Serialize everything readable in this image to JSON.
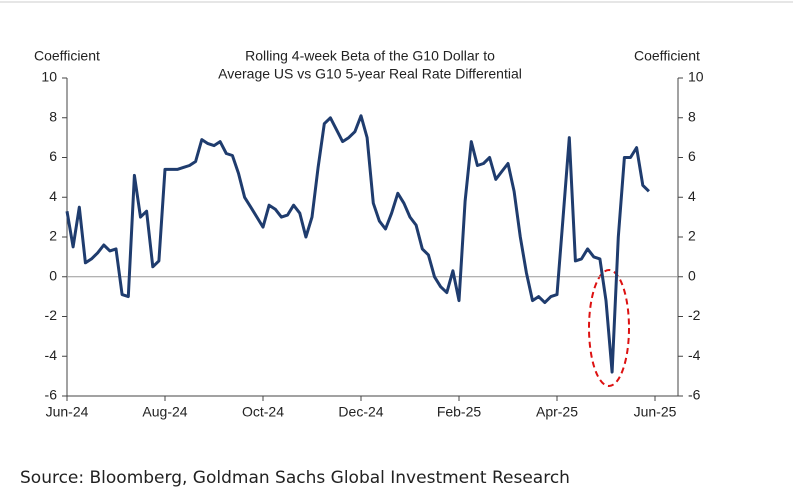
{
  "chart_data": {
    "type": "line",
    "title": [
      "Rolling 4-week Beta of the G10 Dollar to",
      "Average US vs G10 5-year Real Rate Differential"
    ],
    "y_label": "Coefficient",
    "y2_label": "Coefficient",
    "categories": [
      "Jun-24",
      null,
      null,
      null,
      null,
      null,
      null,
      null,
      null,
      null,
      null,
      null,
      null,
      null,
      null,
      null,
      "Aug-24",
      null,
      null,
      null,
      null,
      null,
      null,
      null,
      null,
      null,
      null,
      null,
      null,
      null,
      null,
      null,
      "Oct-24",
      null,
      null,
      null,
      null,
      null,
      null,
      null,
      null,
      null,
      null,
      null,
      null,
      null,
      null,
      null,
      "Dec-24",
      null,
      null,
      null,
      null,
      null,
      null,
      null,
      null,
      null,
      null,
      null,
      null,
      null,
      null,
      null,
      "Feb-25",
      null,
      null,
      null,
      null,
      null,
      null,
      null,
      null,
      null,
      null,
      null,
      null,
      null,
      null,
      null,
      "Apr-25",
      null,
      null,
      null,
      null,
      null,
      null,
      null,
      null,
      null,
      null,
      null,
      null,
      null,
      null,
      null,
      "Jun-25"
    ],
    "series": [
      {
        "name": "Beta",
        "color": "#1f3c6e",
        "values": [
          3.3,
          1.5,
          3.5,
          0.7,
          0.9,
          1.2,
          1.6,
          1.3,
          1.4,
          -0.9,
          -1.0,
          5.1,
          3.0,
          3.3,
          0.5,
          0.8,
          5.4,
          5.4,
          5.4,
          5.5,
          5.6,
          5.8,
          6.9,
          6.7,
          6.6,
          6.8,
          6.2,
          6.1,
          5.2,
          4.0,
          3.5,
          3.0,
          2.5,
          3.6,
          3.4,
          3.0,
          3.1,
          3.6,
          3.2,
          2.0,
          3.0,
          5.5,
          7.7,
          8.0,
          7.4,
          6.8,
          7.0,
          7.3,
          8.1,
          7.0,
          3.7,
          2.8,
          2.4,
          3.2,
          4.2,
          3.7,
          3.0,
          2.6,
          1.4,
          1.1,
          0.0,
          -0.5,
          -0.8,
          0.3,
          -1.2,
          3.8,
          6.8,
          5.6,
          5.7,
          6.0,
          4.9,
          5.3,
          5.7,
          4.3,
          2.0,
          0.2,
          -1.2,
          -1.0,
          -1.3,
          -1.0,
          -0.9,
          3.0,
          7.0,
          0.8,
          0.9,
          1.4,
          1.0,
          0.9,
          -1.2,
          -4.8,
          2.0,
          6.0,
          6.0,
          6.5,
          4.6,
          4.3,
          null
        ]
      }
    ],
    "ylim": [
      -6,
      10
    ],
    "yticks": [
      -6,
      -4,
      -2,
      0,
      2,
      4,
      6,
      8,
      10
    ],
    "y2lim": [
      -6,
      10
    ],
    "y2ticks": [
      -6,
      -4,
      -2,
      0,
      2,
      4,
      6,
      8,
      10
    ],
    "zero_line": true
  },
  "source": "Source: Bloomberg, Goldman Sachs Global Investment Research"
}
